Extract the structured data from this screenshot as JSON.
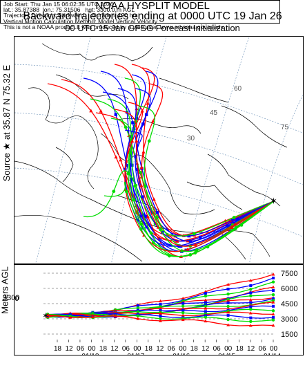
{
  "header": {
    "line1": "NOAA HYSPLIT MODEL",
    "line2": "Backward trajectories ending at 0000 UTC 19 Jan 26",
    "line3": "00 UTC 15 Jan    GFSG  Forecast Initialization"
  },
  "side": {
    "source_label": "Source ★ at  35.87 N   75.32 E",
    "meters_label": "Meters AGL"
  },
  "map": {
    "latitude_labels": [
      "60",
      "45",
      "30"
    ],
    "longitude_labels": [
      "75"
    ],
    "source_marker": "source-star"
  },
  "altitude": {
    "start_height": "3300",
    "right_ticks": [
      "7500",
      "6000",
      "4500",
      "3000",
      "1500"
    ],
    "hour_ticks": [
      "18",
      "12",
      "06",
      "00",
      "18",
      "12",
      "06",
      "00",
      "18",
      "12",
      "06",
      "00",
      "18",
      "12",
      "06",
      "00",
      "18",
      "12",
      "06",
      "00"
    ],
    "date_ticks": [
      "01/18",
      "01/17",
      "01/16",
      "01/15",
      "01/14"
    ]
  },
  "info": {
    "job_start": "Job Start: Thu Jan 15 06:02:35 UTC 2026",
    "lat": "lat.: 35.87388",
    "lon": "lon.: 75.31506",
    "hgt": "hgt: 3300.0 m AGL",
    "direction": "Trajectory Direction: Backward",
    "duration": "Duration: 120 hrs",
    "vertical": "Vertical Motion Calculation Method: Model Vertical Velocity",
    "disclaimer": "This is not a NOAA product.It was produced by a web user. www.arl.noaa.gov/ready"
  },
  "colors": {
    "red": "#ff0000",
    "blue": "#0000ff",
    "green": "#00dd00",
    "map_lines": "#000000",
    "grid_lines": "#6a8fb6"
  }
}
